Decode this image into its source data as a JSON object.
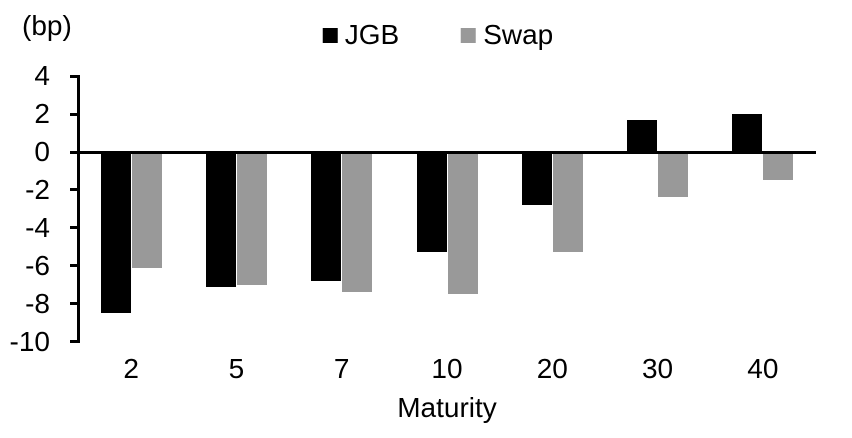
{
  "chart_data": {
    "type": "bar",
    "title": "",
    "unit_label": "(bp)",
    "xlabel": "Maturity",
    "categories": [
      "2",
      "5",
      "7",
      "10",
      "20",
      "30",
      "40"
    ],
    "series": [
      {
        "name": "JGB",
        "color": "#000000",
        "values": [
          -8.5,
          -7.1,
          -6.8,
          -5.3,
          -2.8,
          1.7,
          2.0
        ]
      },
      {
        "name": "Swap",
        "color": "#999999",
        "values": [
          -6.1,
          -7.0,
          -7.4,
          -7.5,
          -5.3,
          -2.4,
          -1.5
        ]
      }
    ],
    "ylim": [
      -10,
      4
    ],
    "ytick_step": 2,
    "yticks": [
      "4",
      "2",
      "0",
      "-2",
      "-4",
      "-6",
      "-8",
      "-10"
    ],
    "grid": "off",
    "legend_position": "top-center",
    "axis_color": "#000000",
    "background_color": "#ffffff"
  }
}
